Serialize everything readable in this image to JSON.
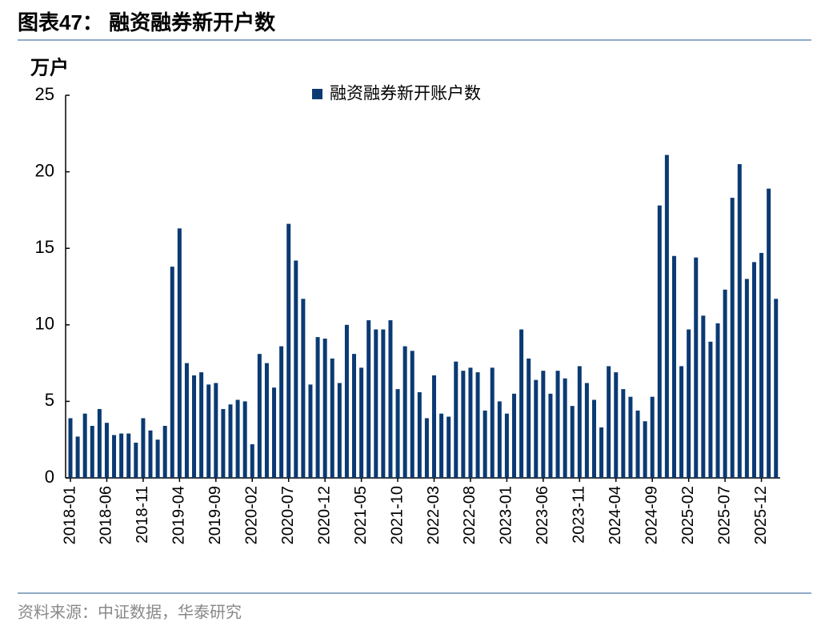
{
  "chart_data": {
    "type": "bar",
    "title": "图表47：  融资融券新开户数",
    "y_label": "万户",
    "source": "资料来源：中证数据，华泰研究",
    "categories": [
      "2018-01",
      null,
      null,
      null,
      null,
      "2018-06",
      null,
      null,
      null,
      null,
      "2018-11",
      null,
      null,
      null,
      null,
      "2019-04",
      null,
      null,
      null,
      null,
      "2019-09",
      null,
      null,
      null,
      null,
      "2020-02",
      null,
      null,
      null,
      null,
      "2020-07",
      null,
      null,
      null,
      null,
      "2020-12",
      null,
      null,
      null,
      null,
      "2021-05",
      null,
      null,
      null,
      null,
      "2021-10",
      null,
      null,
      null,
      null,
      "2022-03",
      null,
      null,
      null,
      null,
      "2022-08",
      null,
      null,
      null,
      null,
      "2023-01",
      null,
      null,
      null,
      null,
      "2023-06",
      null,
      null,
      null,
      null,
      "2023-11",
      null,
      null,
      null,
      null,
      "2024-04",
      null,
      null,
      null,
      null,
      "2024-09",
      null,
      null,
      null,
      null,
      "2025-02",
      null,
      null,
      null,
      null,
      "2025-07",
      null,
      null,
      null,
      null,
      "2025-12",
      null,
      null
    ],
    "series": [
      {
        "name": "融资融券新开账户数",
        "color": "#0b3a73",
        "values": [
          3.9,
          2.7,
          4.2,
          3.4,
          4.5,
          3.6,
          2.8,
          2.9,
          2.9,
          2.3,
          3.9,
          3.1,
          2.5,
          3.4,
          13.8,
          16.3,
          7.5,
          6.7,
          6.9,
          6.1,
          6.2,
          4.5,
          4.8,
          5.1,
          5.0,
          2.2,
          8.1,
          7.5,
          5.9,
          8.6,
          16.6,
          14.2,
          11.7,
          6.1,
          9.2,
          9.1,
          7.8,
          6.2,
          10.0,
          8.1,
          7.2,
          10.3,
          9.7,
          9.7,
          10.3,
          5.8,
          8.6,
          8.3,
          5.6,
          3.9,
          6.7,
          4.2,
          4.0,
          7.6,
          7.0,
          7.2,
          6.9,
          4.4,
          7.2,
          5.0,
          4.2,
          5.5,
          9.7,
          7.8,
          6.4,
          7.0,
          5.5,
          7.0,
          6.5,
          4.7,
          7.3,
          6.2,
          5.1,
          3.3,
          7.3,
          6.9,
          5.8,
          5.3,
          4.4,
          3.7,
          5.3,
          17.8,
          21.1,
          14.5,
          7.3,
          9.7,
          14.4,
          10.6,
          8.9,
          10.1,
          12.3,
          18.3,
          20.5,
          13.0,
          14.1,
          14.7,
          18.9,
          11.7
        ]
      }
    ],
    "ylim": [
      0,
      25
    ],
    "yticks": [
      0,
      5,
      10,
      15,
      20,
      25
    ],
    "legend": "top"
  }
}
